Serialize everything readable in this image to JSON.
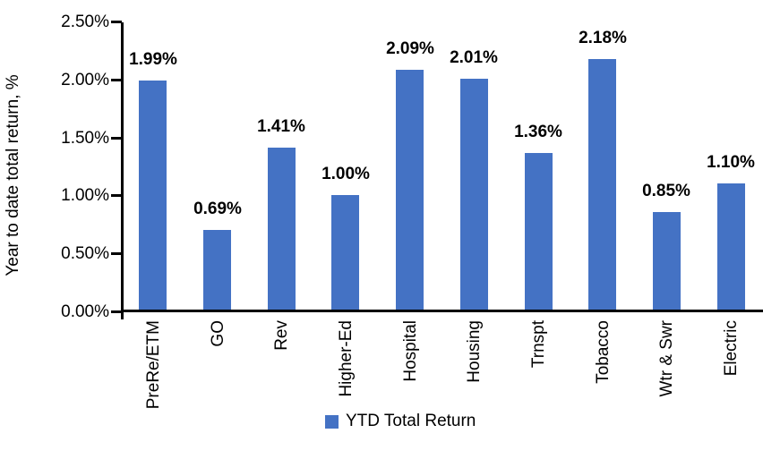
{
  "chart_data": {
    "type": "bar",
    "title": "",
    "xlabel": "",
    "ylabel": "Year to date total return, %",
    "categories": [
      "PreRe/ETM",
      "GO",
      "Rev",
      "Higher-Ed",
      "Hospital",
      "Housing",
      "Trnspt",
      "Tobacco",
      "Wtr & Swr",
      "Electric"
    ],
    "values": [
      1.99,
      0.69,
      1.41,
      1.0,
      2.09,
      2.01,
      1.36,
      2.18,
      0.85,
      1.1
    ],
    "data_labels": [
      "1.99%",
      "0.69%",
      "1.41%",
      "1.00%",
      "2.09%",
      "2.01%",
      "1.36%",
      "2.18%",
      "0.85%",
      "1.10%"
    ],
    "ylim": [
      0,
      2.5
    ],
    "ytick_step": 0.5,
    "ytick_labels": [
      "0.00%",
      "0.50%",
      "1.00%",
      "1.50%",
      "2.00%",
      "2.50%"
    ],
    "grid": false,
    "bar_color": "#4472C4",
    "axis_color": "#000000",
    "legend_position": "bottom",
    "legend": [
      {
        "label": "YTD Total Return",
        "color": "#4472C4"
      }
    ]
  }
}
